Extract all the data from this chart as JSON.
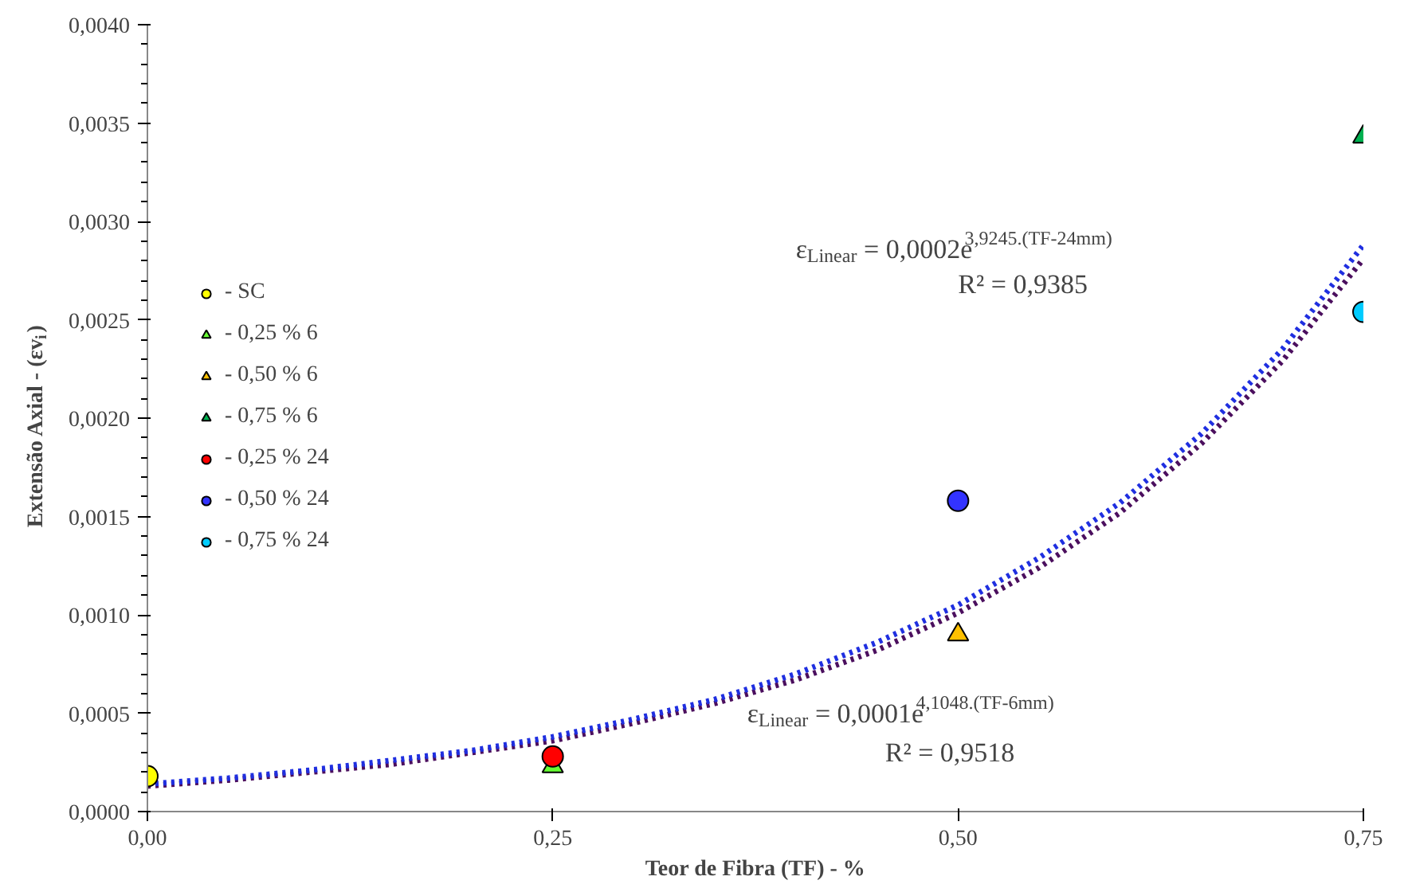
{
  "chart_data": {
    "type": "scatter",
    "xlabel": "Teor de Fibra (TF) - %",
    "ylabel": "Extensão Axial -  (εv$_{i}$)",
    "xlim": [
      0,
      0.75
    ],
    "xticks": [
      {
        "value": 0,
        "label": "0,00"
      },
      {
        "value": 0.25,
        "label": "0,25"
      },
      {
        "value": 0.5,
        "label": "0,50"
      },
      {
        "value": 0.75,
        "label": "0,75"
      }
    ],
    "ylim": [
      0,
      0.004
    ],
    "yticks": [
      {
        "value": 0,
        "label": "0,0000"
      },
      {
        "value": 0.0005,
        "label": "0,0005"
      },
      {
        "value": 0.001,
        "label": "0,0010"
      },
      {
        "value": 0.0015,
        "label": "0,0015"
      },
      {
        "value": 0.002,
        "label": "0,0020"
      },
      {
        "value": 0.0025,
        "label": "0,0025"
      },
      {
        "value": 0.003,
        "label": "0,0030"
      },
      {
        "value": 0.0035,
        "label": "0,0035"
      },
      {
        "value": 0.004,
        "label": "0,0040"
      }
    ],
    "grid": false,
    "legend": "left",
    "series": [
      {
        "type": "line",
        "line_style": "dotted",
        "marker": "none",
        "color": "#4b0f5e",
        "x": [
          0,
          0.05,
          0.1,
          0.15,
          0.2,
          0.25,
          0.3,
          0.35,
          0.4,
          0.45,
          0.5,
          0.55,
          0.6,
          0.65,
          0.7,
          0.75
        ],
        "values": [
          0.00013,
          0.00016,
          0.0002,
          0.00024,
          0.0003,
          0.00036,
          0.00045,
          0.00055,
          0.00067,
          0.00082,
          0.00101,
          0.00124,
          0.00152,
          0.00187,
          0.00229,
          0.00281
        ]
      },
      {
        "type": "line",
        "line_style": "dotted",
        "marker": "none",
        "color": "#1f2fe0",
        "x": [
          0,
          0.05,
          0.1,
          0.15,
          0.2,
          0.25,
          0.3,
          0.35,
          0.4,
          0.45,
          0.5,
          0.55,
          0.6,
          0.65,
          0.7,
          0.75
        ],
        "values": [
          0.00014,
          0.00017,
          0.00021,
          0.00026,
          0.00031,
          0.00038,
          0.00047,
          0.00057,
          0.0007,
          0.00086,
          0.00105,
          0.00129,
          0.00157,
          0.00192,
          0.00235,
          0.00288
        ]
      },
      {
        "name": "- SC",
        "marker": "circle",
        "color": "#ffff00",
        "x": [
          0
        ],
        "values": [
          0.00018
        ]
      },
      {
        "name": "- 0,25 % 6",
        "marker": "triangle",
        "color": "#66ff33",
        "x": [
          0.25
        ],
        "values": [
          0.00023
        ]
      },
      {
        "name": "- 0,50 % 6",
        "marker": "triangle",
        "color": "#ffc000",
        "x": [
          0.5
        ],
        "values": [
          0.0009
        ]
      },
      {
        "name": "- 0,75 % 6",
        "marker": "triangle",
        "color": "#00b050",
        "x": [
          0.75
        ],
        "values": [
          0.00343
        ]
      },
      {
        "name": "- 0,25 % 24",
        "marker": "circle",
        "color": "#ff0000",
        "x": [
          0.25
        ],
        "values": [
          0.00028
        ]
      },
      {
        "name": "- 0,50 % 24",
        "marker": "circle",
        "color": "#3333ff",
        "x": [
          0.5
        ],
        "values": [
          0.00158
        ]
      },
      {
        "name": "- 0,75 % 24",
        "marker": "circle",
        "color": "#00ccff",
        "x": [
          0.75
        ],
        "values": [
          0.00254
        ]
      }
    ],
    "annotations": [
      "ε$_{Linear}$ = 0,0002e$^{3,9245.(TF-24mm)}$",
      "R² = 0,9385",
      "ε$_{Linear}$ = 0,0001e$^{4,1048.(TF-6mm)}$",
      "R² = 0,9518"
    ]
  }
}
